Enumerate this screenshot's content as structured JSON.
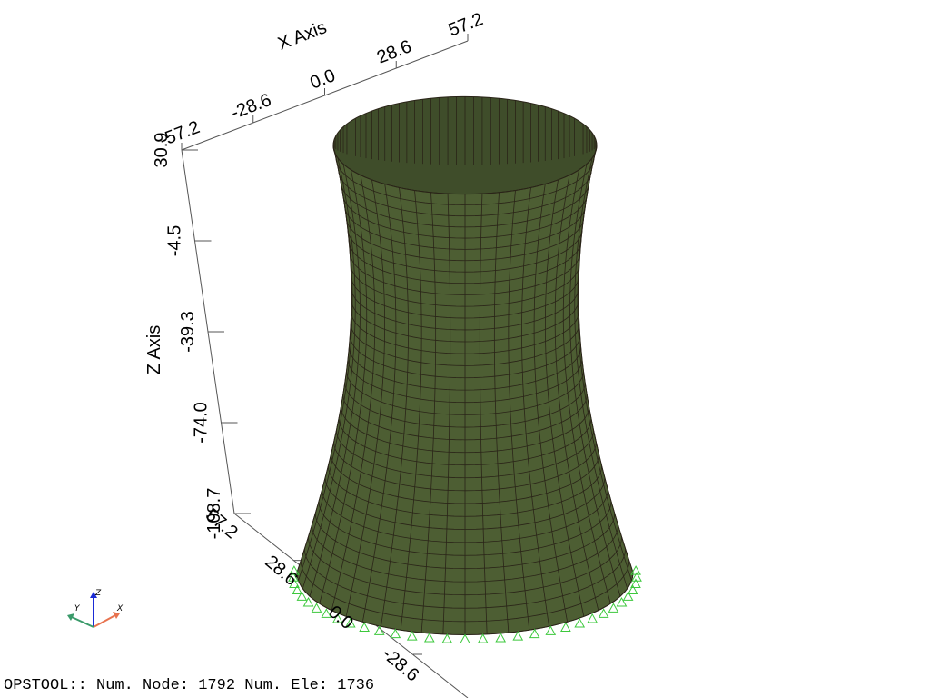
{
  "axes": {
    "x": {
      "label": "X Axis",
      "ticks": [
        "-57.2",
        "-28.6",
        "0.0",
        "28.6",
        "57.2"
      ]
    },
    "y": {
      "ticks": [
        "57.2",
        "28.6",
        "0.0",
        "-28.6"
      ]
    },
    "z": {
      "label": "Z Axis",
      "ticks": [
        "30.9",
        "-4.5",
        "-39.3",
        "-74.0",
        "-108.7"
      ]
    }
  },
  "triad": {
    "x": "X",
    "y": "Y",
    "z": "Z"
  },
  "status": "OPSTOOL:: Num. Node: 1792 Num. Ele: 1736"
}
